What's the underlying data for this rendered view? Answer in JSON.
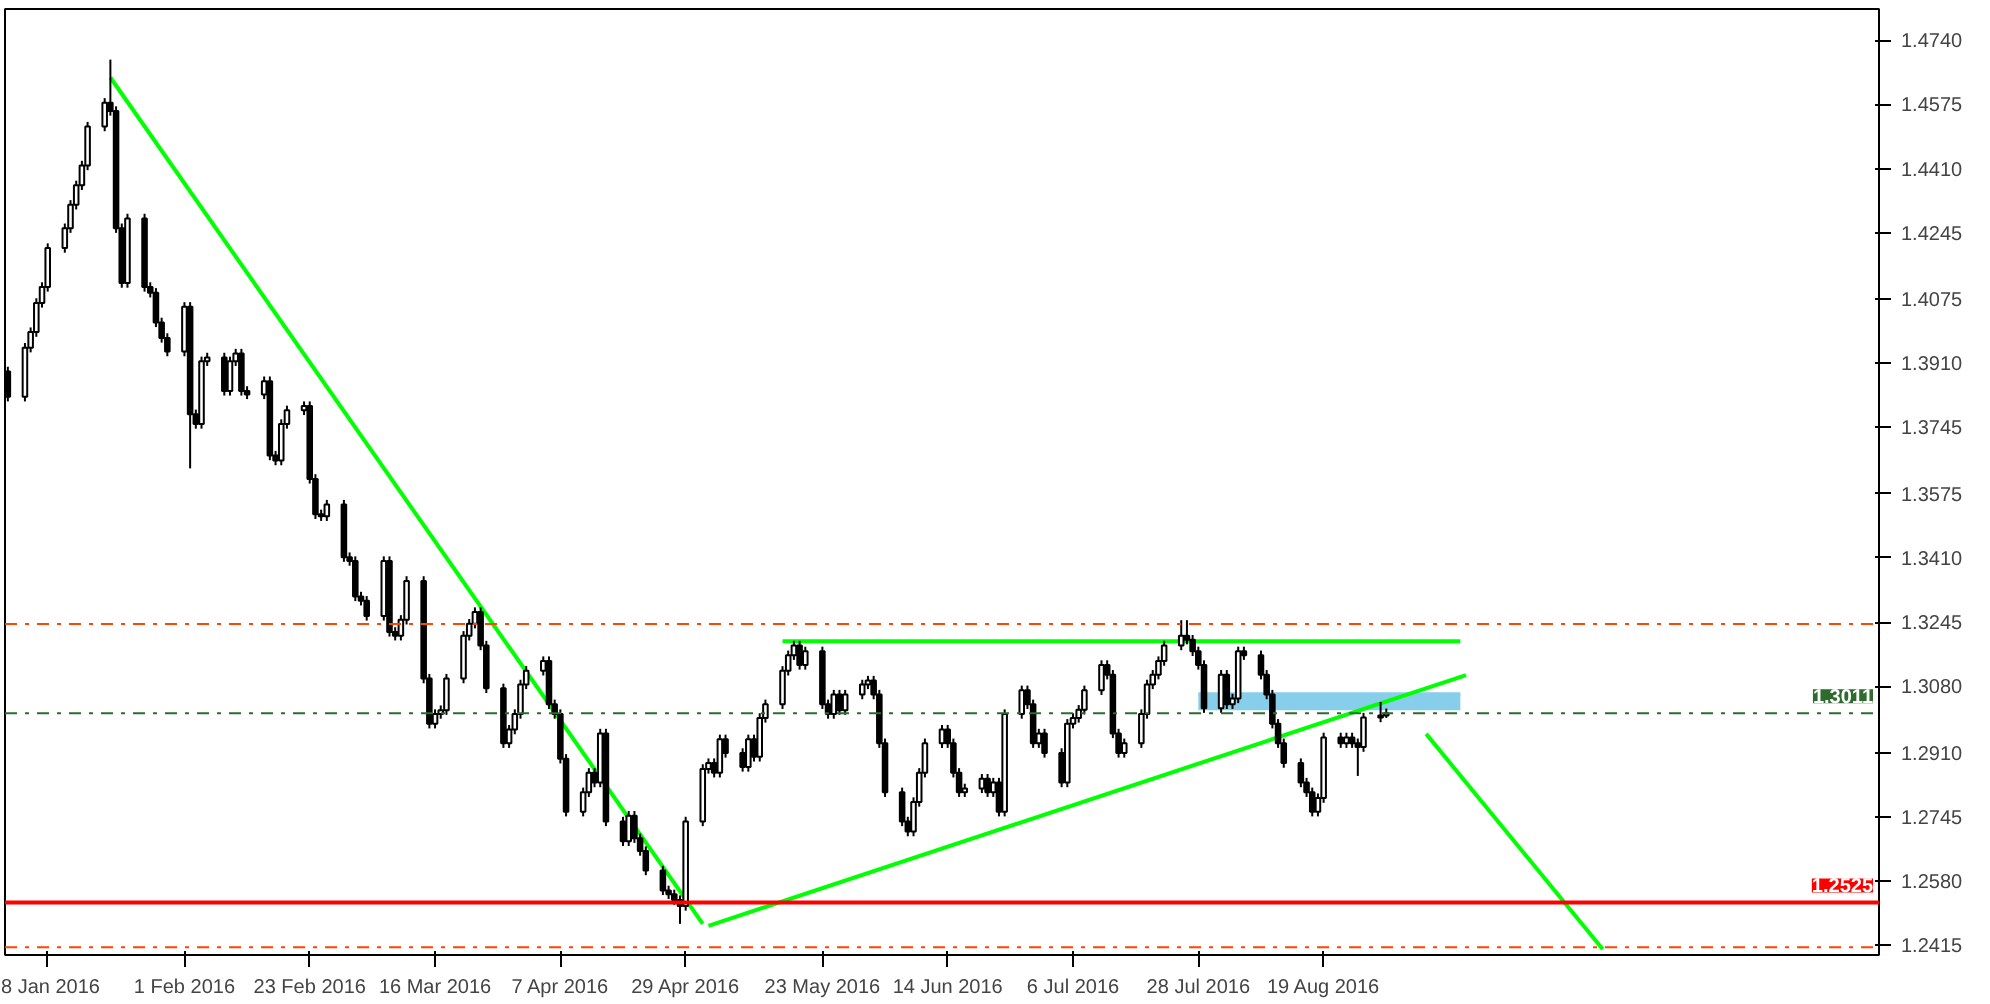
{
  "chart_data": {
    "type": "candlestick",
    "x": [
      "2016-01-01",
      "2016-01-04",
      "2016-01-05",
      "2016-01-06",
      "2016-01-07",
      "2016-01-08",
      "2016-01-11",
      "2016-01-12",
      "2016-01-13",
      "2016-01-14",
      "2016-01-15",
      "2016-01-18",
      "2016-01-19",
      "2016-01-20",
      "2016-01-21",
      "2016-01-22",
      "2016-01-25",
      "2016-01-26",
      "2016-01-27",
      "2016-01-28",
      "2016-01-29",
      "2016-02-01",
      "2016-02-02",
      "2016-02-03",
      "2016-02-04",
      "2016-02-05",
      "2016-02-08",
      "2016-02-09",
      "2016-02-10",
      "2016-02-11",
      "2016-02-12",
      "2016-02-15",
      "2016-02-16",
      "2016-02-17",
      "2016-02-18",
      "2016-02-19",
      "2016-02-22",
      "2016-02-23",
      "2016-02-24",
      "2016-02-25",
      "2016-02-26",
      "2016-02-29",
      "2016-03-01",
      "2016-03-02",
      "2016-03-03",
      "2016-03-04",
      "2016-03-07",
      "2016-03-08",
      "2016-03-09",
      "2016-03-10",
      "2016-03-11",
      "2016-03-14",
      "2016-03-15",
      "2016-03-16",
      "2016-03-17",
      "2016-03-18",
      "2016-03-21",
      "2016-03-22",
      "2016-03-23",
      "2016-03-24",
      "2016-03-25",
      "2016-03-28",
      "2016-03-29",
      "2016-03-30",
      "2016-03-31",
      "2016-04-01",
      "2016-04-04",
      "2016-04-05",
      "2016-04-06",
      "2016-04-07",
      "2016-04-08",
      "2016-04-11",
      "2016-04-12",
      "2016-04-13",
      "2016-04-14",
      "2016-04-15",
      "2016-04-18",
      "2016-04-19",
      "2016-04-20",
      "2016-04-21",
      "2016-04-22",
      "2016-04-25",
      "2016-04-26",
      "2016-04-27",
      "2016-04-28",
      "2016-04-29",
      "2016-05-02",
      "2016-05-03",
      "2016-05-04",
      "2016-05-05",
      "2016-05-06",
      "2016-05-09",
      "2016-05-10",
      "2016-05-11",
      "2016-05-12",
      "2016-05-13",
      "2016-05-16",
      "2016-05-17",
      "2016-05-18",
      "2016-05-19",
      "2016-05-20",
      "2016-05-23",
      "2016-05-24",
      "2016-05-25",
      "2016-05-26",
      "2016-05-27",
      "2016-05-30",
      "2016-05-31",
      "2016-06-01",
      "2016-06-02",
      "2016-06-03",
      "2016-06-06",
      "2016-06-07",
      "2016-06-08",
      "2016-06-09",
      "2016-06-10",
      "2016-06-13",
      "2016-06-14",
      "2016-06-15",
      "2016-06-16",
      "2016-06-17",
      "2016-06-20",
      "2016-06-21",
      "2016-06-22",
      "2016-06-23",
      "2016-06-24",
      "2016-06-27",
      "2016-06-28",
      "2016-06-29",
      "2016-06-30",
      "2016-07-01",
      "2016-07-04",
      "2016-07-05",
      "2016-07-06",
      "2016-07-07",
      "2016-07-08",
      "2016-07-11",
      "2016-07-12",
      "2016-07-13",
      "2016-07-14",
      "2016-07-15",
      "2016-07-18",
      "2016-07-19",
      "2016-07-20",
      "2016-07-21",
      "2016-07-22",
      "2016-07-25",
      "2016-07-26",
      "2016-07-27",
      "2016-07-28",
      "2016-07-29",
      "2016-08-01",
      "2016-08-02",
      "2016-08-03",
      "2016-08-04",
      "2016-08-05",
      "2016-08-08",
      "2016-08-09",
      "2016-08-10",
      "2016-08-11",
      "2016-08-12",
      "2016-08-15",
      "2016-08-16",
      "2016-08-17",
      "2016-08-18",
      "2016-08-19",
      "2016-08-22",
      "2016-08-23",
      "2016-08-24",
      "2016-08-25",
      "2016-08-26",
      "2016-08-29",
      "2016-08-30"
    ],
    "ohlc": [
      [
        1.3889,
        1.3901,
        1.3812,
        1.3824
      ],
      [
        1.3824,
        1.3962,
        1.3812,
        1.395
      ],
      [
        1.395,
        1.4002,
        1.3938,
        1.399
      ],
      [
        1.399,
        1.4077,
        1.3978,
        1.4065
      ],
      [
        1.4065,
        1.4118,
        1.4053,
        1.4106
      ],
      [
        1.4106,
        1.4218,
        1.4094,
        1.4206
      ],
      [
        1.4206,
        1.4269,
        1.4194,
        1.4257
      ],
      [
        1.4257,
        1.4329,
        1.4245,
        1.4317
      ],
      [
        1.4317,
        1.4379,
        1.4305,
        1.4367
      ],
      [
        1.4367,
        1.443,
        1.4355,
        1.4418
      ],
      [
        1.4418,
        1.453,
        1.4406,
        1.4518
      ],
      [
        1.4518,
        1.4591,
        1.4506,
        1.4579
      ],
      [
        1.4579,
        1.469,
        1.4546,
        1.4558
      ],
      [
        1.4558,
        1.457,
        1.4245,
        1.4257
      ],
      [
        1.4257,
        1.4269,
        1.4104,
        1.4116
      ],
      [
        1.4116,
        1.4294,
        1.4104,
        1.4282
      ],
      [
        1.4282,
        1.4294,
        1.4094,
        1.4106
      ],
      [
        1.4106,
        1.4118,
        1.4079,
        1.4091
      ],
      [
        1.4091,
        1.4103,
        1.4003,
        1.4015
      ],
      [
        1.4015,
        1.4027,
        1.3963,
        1.3975
      ],
      [
        1.3975,
        1.3987,
        1.3928,
        1.394
      ],
      [
        1.394,
        1.4067,
        1.3928,
        1.4055
      ],
      [
        1.4055,
        1.4067,
        1.364,
        1.3779
      ],
      [
        1.3779,
        1.3791,
        1.3742,
        1.3754
      ],
      [
        1.3754,
        1.3927,
        1.3742,
        1.3915
      ],
      [
        1.3915,
        1.3937,
        1.3903,
        1.3925
      ],
      [
        1.3925,
        1.3937,
        1.3827,
        1.3839
      ],
      [
        1.3839,
        1.3927,
        1.3827,
        1.3915
      ],
      [
        1.3915,
        1.3947,
        1.3903,
        1.3935
      ],
      [
        1.3935,
        1.3947,
        1.3827,
        1.3839
      ],
      [
        1.3839,
        1.3851,
        1.3818,
        1.383
      ],
      [
        1.383,
        1.3876,
        1.3818,
        1.3864
      ],
      [
        1.3864,
        1.3876,
        1.3661,
        1.3673
      ],
      [
        1.3673,
        1.3685,
        1.3648,
        1.366
      ],
      [
        1.366,
        1.3766,
        1.3648,
        1.3754
      ],
      [
        1.3754,
        1.3801,
        1.3742,
        1.3789
      ],
      [
        1.3789,
        1.3812,
        1.3777,
        1.38
      ],
      [
        1.38,
        1.3812,
        1.3601,
        1.3613
      ],
      [
        1.3613,
        1.3625,
        1.351,
        1.3522
      ],
      [
        1.3522,
        1.3534,
        1.3505,
        1.3517
      ],
      [
        1.3517,
        1.3559,
        1.3505,
        1.3547
      ],
      [
        1.3547,
        1.3559,
        1.34,
        1.3412
      ],
      [
        1.3412,
        1.3424,
        1.339,
        1.3402
      ],
      [
        1.3402,
        1.3414,
        1.3299,
        1.3311
      ],
      [
        1.3311,
        1.3323,
        1.3288,
        1.33
      ],
      [
        1.33,
        1.3312,
        1.3249,
        1.3261
      ],
      [
        1.3261,
        1.3414,
        1.3249,
        1.3402
      ],
      [
        1.3402,
        1.3414,
        1.3208,
        1.322
      ],
      [
        1.322,
        1.3232,
        1.3198,
        1.321
      ],
      [
        1.321,
        1.3263,
        1.3198,
        1.3251
      ],
      [
        1.3251,
        1.3363,
        1.3239,
        1.3351
      ],
      [
        1.3351,
        1.3363,
        1.3088,
        1.31
      ],
      [
        1.31,
        1.3112,
        1.2972,
        1.2984
      ],
      [
        1.2984,
        1.3021,
        1.2972,
        1.3009
      ],
      [
        1.3009,
        1.3031,
        1.2997,
        1.3019
      ],
      [
        1.3019,
        1.3112,
        1.3007,
        1.31
      ],
      [
        1.31,
        1.3222,
        1.3088,
        1.321
      ],
      [
        1.321,
        1.3253,
        1.3198,
        1.3241
      ],
      [
        1.3241,
        1.3283,
        1.3229,
        1.3271
      ],
      [
        1.3271,
        1.3283,
        1.3173,
        1.3185
      ],
      [
        1.3185,
        1.3197,
        1.3063,
        1.3075
      ],
      [
        1.3075,
        1.3087,
        1.2922,
        1.2934
      ],
      [
        1.2934,
        1.2981,
        1.2922,
        1.2969
      ],
      [
        1.2969,
        1.3021,
        1.2957,
        1.3009
      ],
      [
        1.3009,
        1.3097,
        1.2997,
        1.3085
      ],
      [
        1.3085,
        1.3132,
        1.3073,
        1.312
      ],
      [
        1.312,
        1.3157,
        1.3108,
        1.3145
      ],
      [
        1.3145,
        1.3157,
        1.3022,
        1.3034
      ],
      [
        1.3034,
        1.3046,
        1.2997,
        1.3009
      ],
      [
        1.3009,
        1.3021,
        1.2882,
        1.2894
      ],
      [
        1.2894,
        1.2906,
        1.2746,
        1.2758
      ],
      [
        1.2758,
        1.282,
        1.2746,
        1.2808
      ],
      [
        1.2808,
        1.287,
        1.2796,
        1.2858
      ],
      [
        1.2858,
        1.287,
        1.2821,
        1.2833
      ],
      [
        1.2833,
        1.2971,
        1.2821,
        1.2959
      ],
      [
        1.2959,
        1.2971,
        1.2721,
        1.2733
      ],
      [
        1.2733,
        1.2745,
        1.267,
        1.2682
      ],
      [
        1.2682,
        1.276,
        1.267,
        1.2748
      ],
      [
        1.2748,
        1.276,
        1.2678,
        1.269
      ],
      [
        1.269,
        1.2702,
        1.2645,
        1.2657
      ],
      [
        1.2657,
        1.2669,
        1.2595,
        1.2607
      ],
      [
        1.2607,
        1.2619,
        1.2544,
        1.2556
      ],
      [
        1.2556,
        1.2568,
        1.2534,
        1.2546
      ],
      [
        1.2546,
        1.2558,
        1.2519,
        1.2531
      ],
      [
        1.2531,
        1.2543,
        1.247,
        1.2516
      ],
      [
        1.2516,
        1.2745,
        1.2504,
        1.2733
      ],
      [
        1.2733,
        1.288,
        1.2721,
        1.2868
      ],
      [
        1.2868,
        1.2895,
        1.2856,
        1.2883
      ],
      [
        1.2883,
        1.2895,
        1.2846,
        1.2858
      ],
      [
        1.2858,
        1.2956,
        1.2846,
        1.2944
      ],
      [
        1.2944,
        1.2956,
        1.2897,
        1.2909
      ],
      [
        1.2909,
        1.2921,
        1.2861,
        1.2873
      ],
      [
        1.2873,
        1.2956,
        1.2861,
        1.2944
      ],
      [
        1.2944,
        1.2956,
        1.2887,
        1.2899
      ],
      [
        1.2899,
        1.3011,
        1.2887,
        1.2999
      ],
      [
        1.2999,
        1.3046,
        1.2987,
        1.3034
      ],
      [
        1.3034,
        1.3132,
        1.3022,
        1.312
      ],
      [
        1.312,
        1.3172,
        1.3108,
        1.316
      ],
      [
        1.316,
        1.3197,
        1.3148,
        1.3185
      ],
      [
        1.3185,
        1.3197,
        1.3123,
        1.3135
      ],
      [
        1.3135,
        1.3182,
        1.3123,
        1.317
      ],
      [
        1.317,
        1.3182,
        1.3022,
        1.3034
      ],
      [
        1.3034,
        1.3046,
        1.2997,
        1.3009
      ],
      [
        1.3009,
        1.3071,
        1.2997,
        1.3059
      ],
      [
        1.3059,
        1.3071,
        1.3007,
        1.3019
      ],
      [
        1.3019,
        1.3071,
        1.3007,
        1.3059
      ],
      [
        1.3059,
        1.3097,
        1.3047,
        1.3085
      ],
      [
        1.3085,
        1.3107,
        1.3073,
        1.3095
      ],
      [
        1.3095,
        1.3107,
        1.3047,
        1.3059
      ],
      [
        1.3059,
        1.3071,
        1.2922,
        1.2934
      ],
      [
        1.2934,
        1.2946,
        1.2796,
        1.2808
      ],
      [
        1.2808,
        1.282,
        1.2721,
        1.2733
      ],
      [
        1.2733,
        1.2745,
        1.2695,
        1.2707
      ],
      [
        1.2707,
        1.2795,
        1.2695,
        1.2783
      ],
      [
        1.2783,
        1.287,
        1.2771,
        1.2858
      ],
      [
        1.2858,
        1.2946,
        1.2846,
        1.2934
      ],
      [
        1.2934,
        1.2981,
        1.2922,
        1.2969
      ],
      [
        1.2969,
        1.2981,
        1.2922,
        1.2934
      ],
      [
        1.2934,
        1.2946,
        1.2846,
        1.2858
      ],
      [
        1.2858,
        1.287,
        1.2796,
        1.2808
      ],
      [
        1.2808,
        1.283,
        1.2796,
        1.2818
      ],
      [
        1.2818,
        1.2855,
        1.2806,
        1.2843
      ],
      [
        1.2843,
        1.2855,
        1.2796,
        1.2808
      ],
      [
        1.2808,
        1.2845,
        1.2796,
        1.2833
      ],
      [
        1.2833,
        1.2845,
        1.2746,
        1.2758
      ],
      [
        1.2758,
        1.3021,
        1.2746,
        1.3009
      ],
      [
        1.3009,
        1.3082,
        1.2997,
        1.307
      ],
      [
        1.307,
        1.3082,
        1.3022,
        1.3034
      ],
      [
        1.3034,
        1.3046,
        1.2922,
        1.2934
      ],
      [
        1.2934,
        1.2971,
        1.2922,
        1.2959
      ],
      [
        1.2959,
        1.2971,
        1.2897,
        1.2909
      ],
      [
        1.2909,
        1.2921,
        1.2821,
        1.2833
      ],
      [
        1.2833,
        1.2996,
        1.2821,
        1.2984
      ],
      [
        1.2984,
        1.3011,
        1.2972,
        1.2999
      ],
      [
        1.2999,
        1.3032,
        1.2987,
        1.302
      ],
      [
        1.302,
        1.3082,
        1.3008,
        1.307
      ],
      [
        1.307,
        1.3147,
        1.3058,
        1.3135
      ],
      [
        1.3135,
        1.3147,
        1.3098,
        1.311
      ],
      [
        1.311,
        1.3122,
        1.2947,
        1.2959
      ],
      [
        1.2959,
        1.2971,
        1.2897,
        1.2909
      ],
      [
        1.2909,
        1.2946,
        1.2897,
        1.2934
      ],
      [
        1.2934,
        1.3021,
        1.2922,
        1.3009
      ],
      [
        1.3009,
        1.3097,
        1.2997,
        1.3085
      ],
      [
        1.3085,
        1.3122,
        1.3073,
        1.311
      ],
      [
        1.311,
        1.3157,
        1.3098,
        1.3145
      ],
      [
        1.3145,
        1.3197,
        1.3133,
        1.3185
      ],
      [
        1.3185,
        1.325,
        1.3173,
        1.321
      ],
      [
        1.321,
        1.325,
        1.3188,
        1.32
      ],
      [
        1.32,
        1.3212,
        1.3158,
        1.317
      ],
      [
        1.317,
        1.3182,
        1.3123,
        1.3135
      ],
      [
        1.3135,
        1.3147,
        1.3012,
        1.3024
      ],
      [
        1.3024,
        1.3122,
        1.3012,
        1.311
      ],
      [
        1.311,
        1.3122,
        1.3022,
        1.3034
      ],
      [
        1.3034,
        1.3061,
        1.3022,
        1.3049
      ],
      [
        1.3049,
        1.3182,
        1.3037,
        1.317
      ],
      [
        1.317,
        1.3182,
        1.3148,
        1.316
      ],
      [
        1.316,
        1.3172,
        1.3098,
        1.311
      ],
      [
        1.311,
        1.3122,
        1.3047,
        1.3059
      ],
      [
        1.3059,
        1.3071,
        1.2972,
        1.2984
      ],
      [
        1.2984,
        1.2996,
        1.2922,
        1.2934
      ],
      [
        1.2934,
        1.2946,
        1.2871,
        1.2883
      ],
      [
        1.2883,
        1.2895,
        1.2821,
        1.2833
      ],
      [
        1.2833,
        1.2845,
        1.2796,
        1.2808
      ],
      [
        1.2808,
        1.282,
        1.2746,
        1.2758
      ],
      [
        1.2758,
        1.2805,
        1.2746,
        1.2793
      ],
      [
        1.2793,
        1.2961,
        1.2781,
        1.2949
      ],
      [
        1.2949,
        1.2961,
        1.2922,
        1.2934
      ],
      [
        1.2934,
        1.2961,
        1.2922,
        1.2949
      ],
      [
        1.2949,
        1.2961,
        1.2922,
        1.2934
      ],
      [
        1.2934,
        1.2946,
        1.285,
        1.2924
      ],
      [
        1.2924,
        1.3012,
        1.2912,
        1.3
      ],
      [
        1.3,
        1.304,
        1.2988,
        1.3005
      ],
      [
        1.3005,
        1.3023,
        1.2999,
        1.3011
      ]
    ],
    "series": [
      {
        "type": "line",
        "x": [
          "2016-07-28",
          "2016-09-12"
        ],
        "values": [
          1.306,
          1.306
        ],
        "lower": [
          1.3019,
          1.3019
        ],
        "upper": [
          1.306,
          1.306
        ],
        "color": "#87ceeb"
      },
      {
        "type": "line",
        "x": [
          "2016-01-19",
          "2016-05-02"
        ],
        "values": [
          1.4644,
          1.247
        ],
        "color": "#00ff00"
      },
      {
        "type": "line",
        "x": [
          "2016-05-03",
          "2016-09-13"
        ],
        "values": [
          1.2465,
          1.3109
        ],
        "color": "#00ff00"
      },
      {
        "type": "line",
        "x": [
          "2016-05-16",
          "2016-09-12"
        ],
        "values": [
          1.3196,
          1.3196
        ],
        "color": "#00ff00"
      },
      {
        "type": "line",
        "x": [
          "2016-09-06",
          "2016-10-07"
        ],
        "values": [
          1.2958,
          1.2405
        ],
        "color": "#00ff00"
      }
    ],
    "ref_lines": [
      {
        "axis": "y",
        "value": 1.324,
        "label": null,
        "color": "#ff4500",
        "line_style": "dashdot"
      },
      {
        "axis": "y",
        "value": 1.241,
        "label": null,
        "color": "#ff4500",
        "line_style": "dashdot"
      },
      {
        "axis": "y",
        "value": 1.3011,
        "label": "1.3011",
        "color": "#2f6b2f",
        "line_style": "dashdot"
      },
      {
        "axis": "y",
        "value": 1.2525,
        "label": "1.2525",
        "color": "#ff0000",
        "line_style": "solid"
      }
    ],
    "xlim": [
      "2016-01-01",
      "2016-11-24"
    ],
    "xticks": [
      {
        "value": "2016-01-08",
        "label": "8 Jan 2016"
      },
      {
        "value": "2016-02-01",
        "label": "1 Feb 2016"
      },
      {
        "value": "2016-02-23",
        "label": "23 Feb 2016"
      },
      {
        "value": "2016-03-16",
        "label": "16 Mar 2016"
      },
      {
        "value": "2016-04-07",
        "label": "7 Apr 2016"
      },
      {
        "value": "2016-04-29",
        "label": "29 Apr 2016"
      },
      {
        "value": "2016-05-23",
        "label": "23 May 2016"
      },
      {
        "value": "2016-06-14",
        "label": "14 Jun 2016"
      },
      {
        "value": "2016-07-06",
        "label": "6 Jul 2016"
      },
      {
        "value": "2016-07-28",
        "label": "28 Jul 2016"
      },
      {
        "value": "2016-08-19",
        "label": "19 Aug 2016"
      }
    ],
    "ylim": [
      1.239,
      1.482
    ],
    "yticks": [
      {
        "value": 1.474,
        "label": "1.4740"
      },
      {
        "value": 1.4575,
        "label": "1.4575"
      },
      {
        "value": 1.441,
        "label": "1.4410"
      },
      {
        "value": 1.4245,
        "label": "1.4245"
      },
      {
        "value": 1.4075,
        "label": "1.4075"
      },
      {
        "value": 1.391,
        "label": "1.3910"
      },
      {
        "value": 1.3745,
        "label": "1.3745"
      },
      {
        "value": 1.3575,
        "label": "1.3575"
      },
      {
        "value": 1.341,
        "label": "1.3410"
      },
      {
        "value": 1.3245,
        "label": "1.3245"
      },
      {
        "value": 1.308,
        "label": "1.3080"
      },
      {
        "value": 1.291,
        "label": "1.2910"
      },
      {
        "value": 1.2745,
        "label": "1.2745"
      },
      {
        "value": 1.258,
        "label": "1.2580"
      },
      {
        "value": 1.2415,
        "label": "1.2415"
      }
    ],
    "grid": false
  }
}
